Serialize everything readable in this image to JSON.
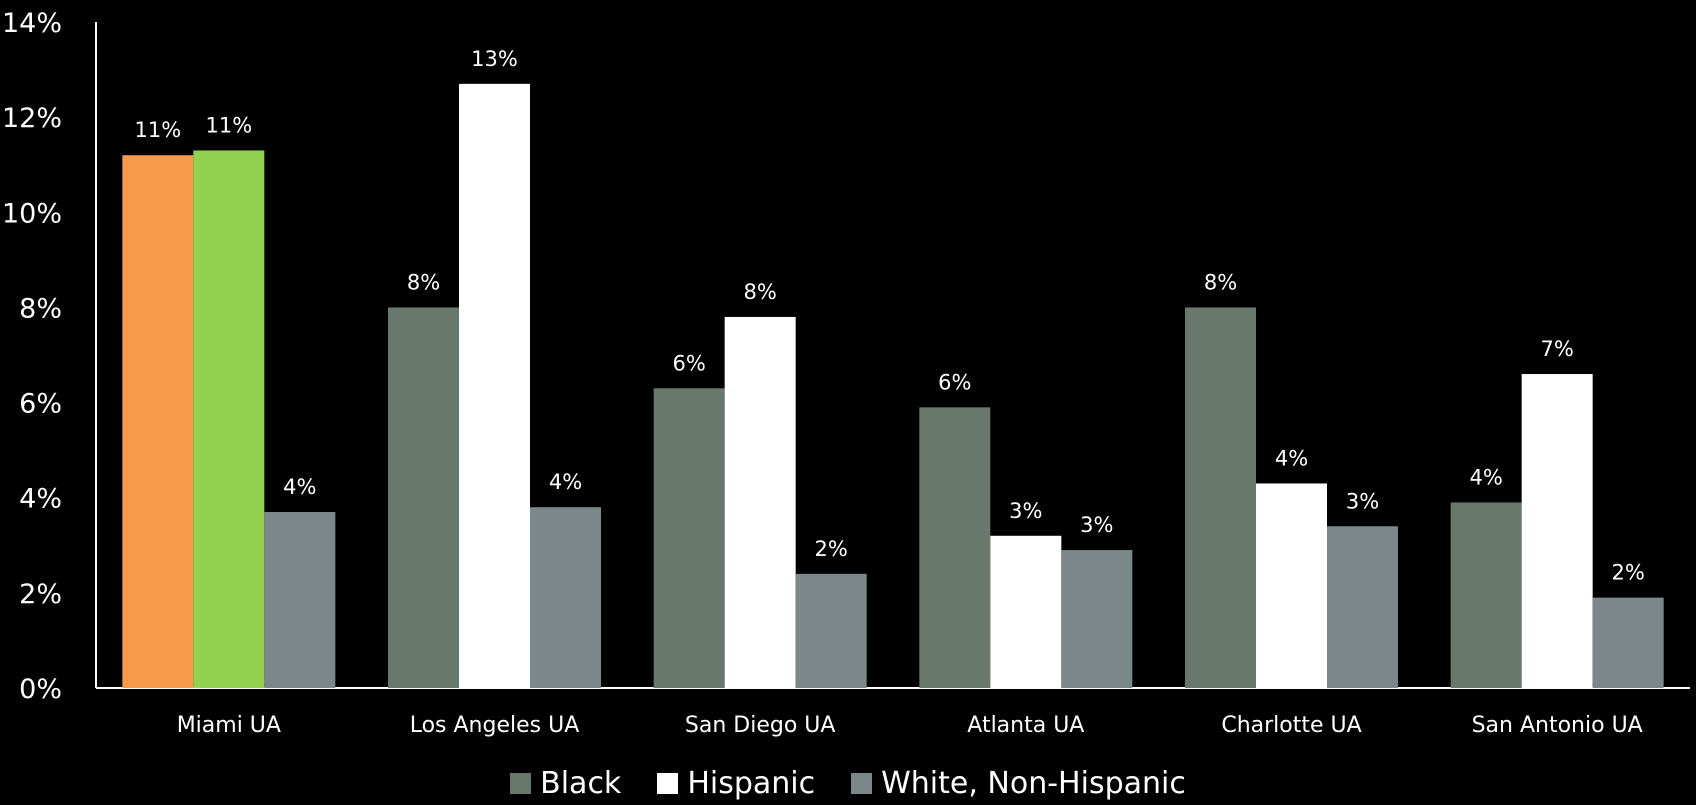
{
  "chart_data": {
    "type": "bar",
    "categories": [
      "Miami UA",
      "Los Angeles UA",
      "San Diego UA",
      "Atlanta UA",
      "Charlotte UA",
      "San Antonio UA"
    ],
    "series": [
      {
        "name": "Black",
        "values": [
          11.2,
          8.0,
          6.3,
          5.9,
          8.0,
          3.9
        ],
        "labels": [
          "11%",
          "8%",
          "6%",
          "6%",
          "8%",
          "4%"
        ],
        "color": "#68786d"
      },
      {
        "name": "Hispanic",
        "values": [
          11.3,
          12.7,
          7.8,
          3.2,
          4.3,
          6.6
        ],
        "labels": [
          "11%",
          "13%",
          "8%",
          "3%",
          "4%",
          "7%"
        ],
        "color": "#ffffff"
      },
      {
        "name": "White, Non-Hispanic",
        "values": [
          3.7,
          3.8,
          2.4,
          2.9,
          3.4,
          1.9
        ],
        "labels": [
          "4%",
          "4%",
          "2%",
          "3%",
          "3%",
          "2%"
        ],
        "color": "#7c8789"
      }
    ],
    "highlight": {
      "category_index": 0,
      "colors": [
        "#f79a4a",
        "#93d250",
        "#7c8789"
      ]
    },
    "ylim": [
      0,
      14
    ],
    "yticks": [
      0,
      2,
      4,
      6,
      8,
      10,
      12,
      14
    ],
    "ytick_labels": [
      "0%",
      "2%",
      "4%",
      "6%",
      "8%",
      "10%",
      "12%",
      "14%"
    ],
    "grid": false,
    "legend_position": "bottom",
    "background": "#000000",
    "text_color": "#ffffff"
  }
}
